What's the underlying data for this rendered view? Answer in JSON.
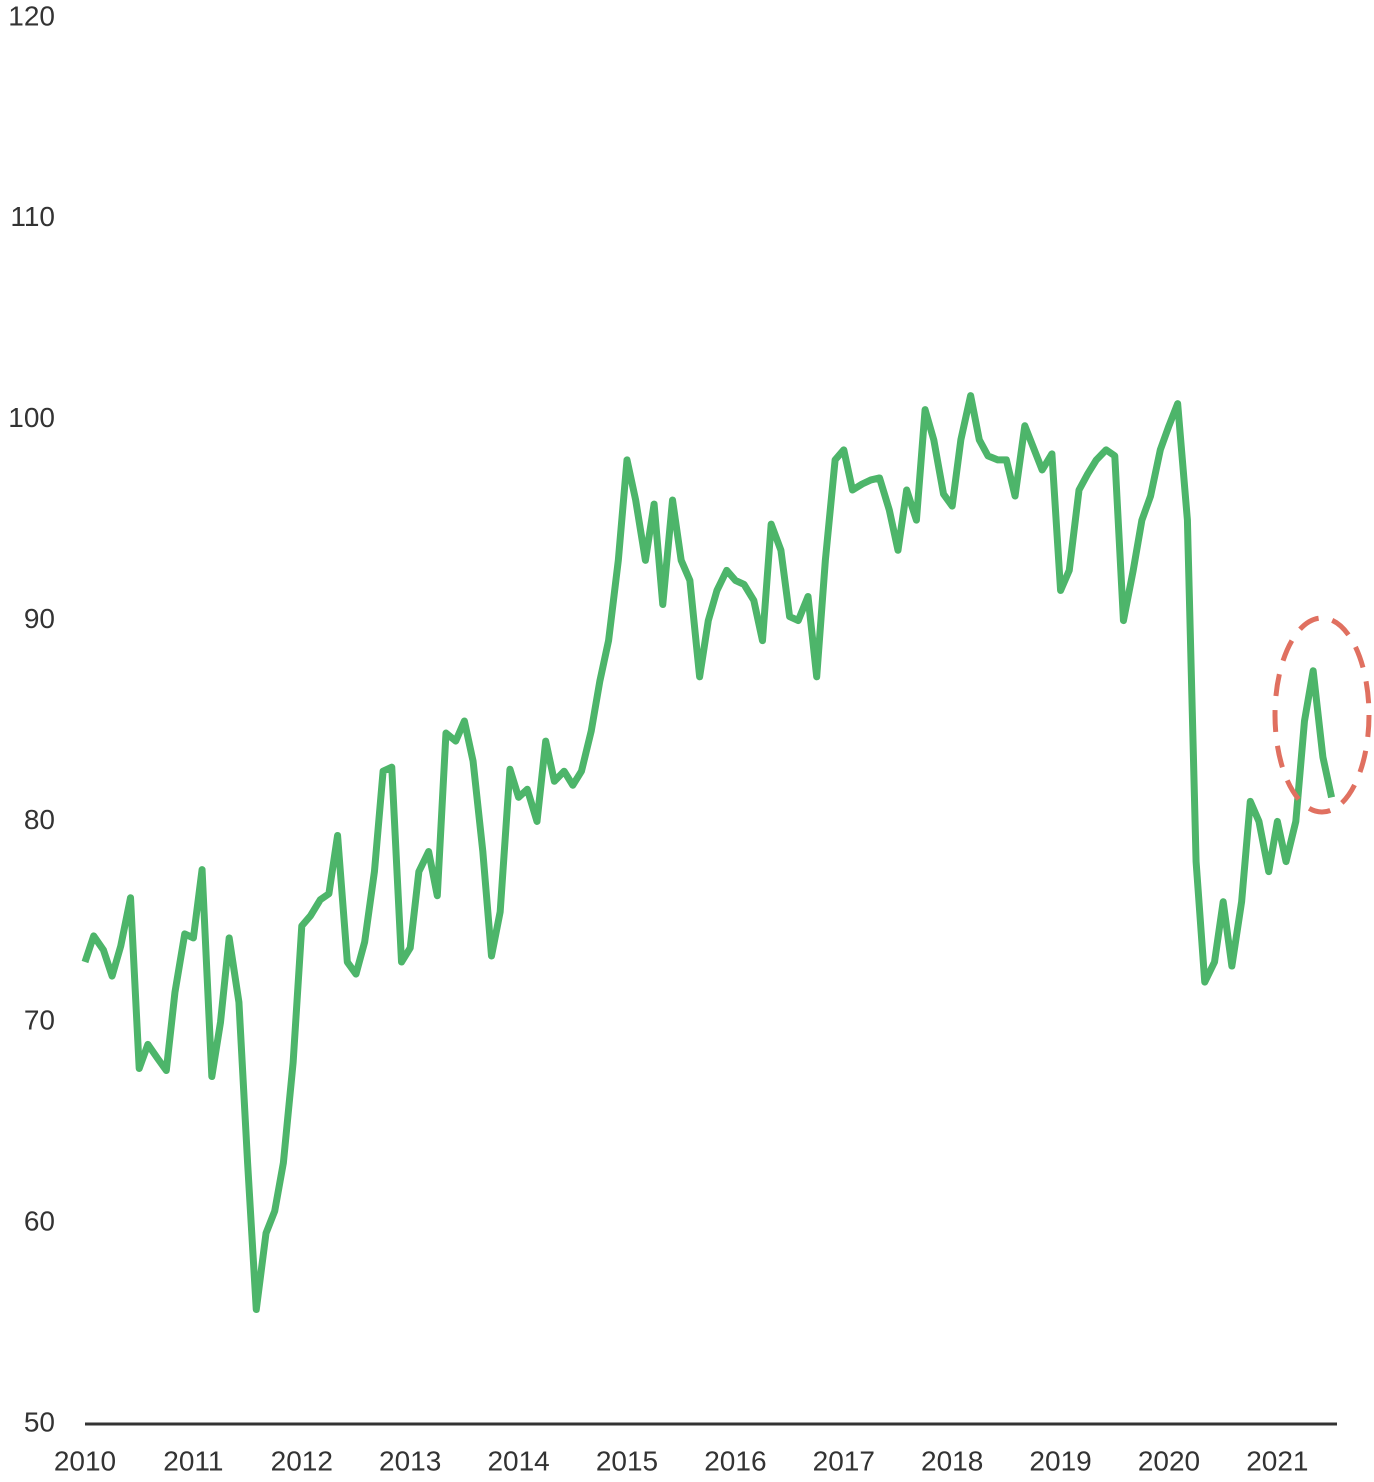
{
  "chart_data": {
    "type": "line",
    "x": [
      2010.0,
      2010.08,
      2010.17,
      2010.25,
      2010.33,
      2010.42,
      2010.5,
      2010.58,
      2010.67,
      2010.75,
      2010.83,
      2010.92,
      2011.0,
      2011.08,
      2011.17,
      2011.25,
      2011.33,
      2011.42,
      2011.5,
      2011.58,
      2011.67,
      2011.75,
      2011.83,
      2011.92,
      2012.0,
      2012.08,
      2012.17,
      2012.25,
      2012.33,
      2012.42,
      2012.5,
      2012.58,
      2012.67,
      2012.75,
      2012.83,
      2012.92,
      2013.0,
      2013.08,
      2013.17,
      2013.25,
      2013.33,
      2013.42,
      2013.5,
      2013.58,
      2013.67,
      2013.75,
      2013.83,
      2013.92,
      2014.0,
      2014.08,
      2014.17,
      2014.25,
      2014.33,
      2014.42,
      2014.5,
      2014.58,
      2014.67,
      2014.75,
      2014.83,
      2014.92,
      2015.0,
      2015.08,
      2015.17,
      2015.25,
      2015.33,
      2015.42,
      2015.5,
      2015.58,
      2015.67,
      2015.75,
      2015.83,
      2015.92,
      2016.0,
      2016.08,
      2016.17,
      2016.25,
      2016.33,
      2016.42,
      2016.5,
      2016.58,
      2016.67,
      2016.75,
      2016.83,
      2016.92,
      2017.0,
      2017.08,
      2017.17,
      2017.25,
      2017.33,
      2017.42,
      2017.5,
      2017.58,
      2017.67,
      2017.75,
      2017.83,
      2017.92,
      2018.0,
      2018.08,
      2018.17,
      2018.25,
      2018.33,
      2018.42,
      2018.5,
      2018.58,
      2018.67,
      2018.75,
      2018.83,
      2018.92,
      2019.0,
      2019.08,
      2019.17,
      2019.25,
      2019.33,
      2019.42,
      2019.5,
      2019.58,
      2019.67,
      2019.75,
      2019.83,
      2019.92,
      2020.0,
      2020.08,
      2020.17,
      2020.25,
      2020.33,
      2020.42,
      2020.5,
      2020.58,
      2020.67,
      2020.75,
      2020.83,
      2020.92,
      2021.0,
      2021.08,
      2021.17,
      2021.25,
      2021.33,
      2021.42,
      2021.5
    ],
    "series": [
      {
        "color": "#4db56a",
        "values": [
          73,
          74.3,
          73.6,
          72.3,
          73.8,
          76.2,
          67.7,
          68.9,
          68.2,
          67.6,
          71.5,
          74.4,
          74.2,
          77.6,
          67.3,
          70,
          74.2,
          71,
          63,
          55.7,
          59.5,
          60.6,
          63,
          68,
          74.8,
          75.3,
          76.1,
          76.4,
          79.3,
          73,
          72.4,
          74,
          77.5,
          82.5,
          82.7,
          73,
          73.7,
          77.5,
          78.5,
          76.3,
          84.4,
          84,
          85,
          83,
          78.5,
          73.3,
          75.5,
          82.6,
          81.2,
          81.6,
          80,
          84,
          82,
          82.5,
          81.8,
          82.5,
          84.5,
          87,
          89,
          93,
          98,
          96,
          93,
          95.8,
          90.8,
          96,
          93,
          92,
          87.2,
          90,
          91.5,
          92.5,
          92,
          91.8,
          91,
          89,
          94.8,
          93.5,
          90.2,
          90,
          91.2,
          87.2,
          93,
          98,
          98.5,
          96.5,
          96.8,
          97,
          97.1,
          95.5,
          93.5,
          96.5,
          95,
          100.5,
          99,
          96.3,
          95.7,
          99,
          101.2,
          99,
          98.2,
          98,
          98,
          96.2,
          99.7,
          98.6,
          97.5,
          98.3,
          91.5,
          92.5,
          96.5,
          97.3,
          98,
          98.5,
          98.2,
          90,
          92.5,
          95,
          96.2,
          98.5,
          99.7,
          100.8,
          95,
          78,
          72,
          73,
          76,
          72.8,
          76,
          81,
          80,
          77.5,
          80,
          78,
          80,
          85,
          87.5,
          83.2,
          81.2
        ]
      }
    ],
    "xlim": [
      2010,
      2021.55
    ],
    "xticks": [
      2010,
      2011,
      2012,
      2013,
      2014,
      2015,
      2016,
      2017,
      2018,
      2019,
      2020,
      2021
    ],
    "ylim": [
      50,
      120
    ],
    "yticks": [
      50,
      60,
      70,
      80,
      90,
      100,
      110,
      120
    ]
  }
}
